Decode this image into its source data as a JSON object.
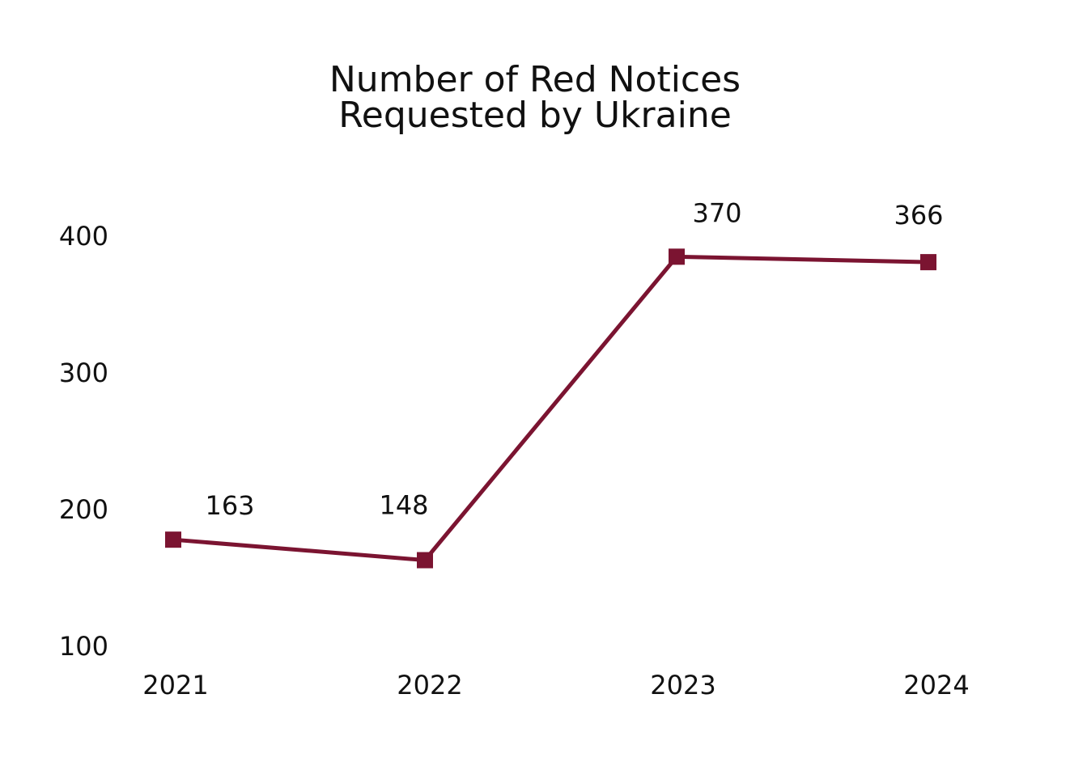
{
  "chart_data": {
    "type": "line",
    "title_lines": [
      "Number of Red Notices",
      "Requested by Ukraine"
    ],
    "xlabel": "",
    "ylabel": "",
    "categories": [
      "2021",
      "2022",
      "2023",
      "2024"
    ],
    "series": [
      {
        "values": [
          163,
          148,
          370,
          366
        ],
        "data_labels": [
          "163",
          "148",
          "370",
          "366"
        ]
      }
    ],
    "yticks": [
      {
        "value": 100,
        "label": "100"
      },
      {
        "value": 200,
        "label": "200"
      },
      {
        "value": 300,
        "label": "300"
      },
      {
        "value": 400,
        "label": "400"
      }
    ],
    "ylim": [
      100,
      400
    ],
    "grid": false,
    "legend": "none",
    "colors": {
      "line": "#7b1431",
      "text": "#111111"
    }
  }
}
